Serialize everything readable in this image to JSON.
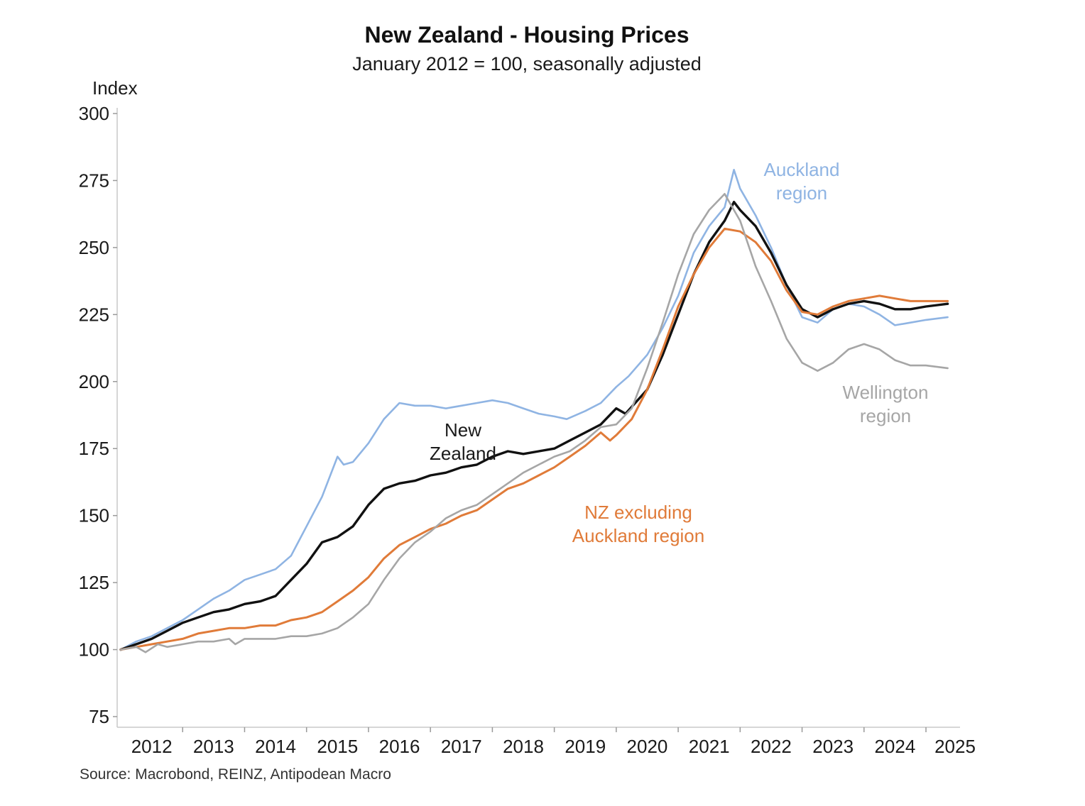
{
  "chart_data": {
    "type": "line",
    "title": "New Zealand - Housing Prices",
    "subtitle": "January 2012 = 100, seasonally adjusted",
    "ylabel": "Index",
    "xlabel": "",
    "source": "Source: Macrobond, REINZ, Antipodean Macro",
    "ylim": [
      75,
      300
    ],
    "xlim": [
      2012.0,
      2025.55
    ],
    "yticks": [
      75,
      100,
      125,
      150,
      175,
      200,
      225,
      250,
      275,
      300
    ],
    "xtick_labels": [
      "2012",
      "2013",
      "2014",
      "2015",
      "2016",
      "2017",
      "2018",
      "2019",
      "2020",
      "2021",
      "2022",
      "2023",
      "2024",
      "2025"
    ],
    "grid": false,
    "legend": "none",
    "series": [
      {
        "name": "Auckland region",
        "color": "#8fb4e3",
        "points": [
          [
            2012.0,
            100
          ],
          [
            2012.25,
            103
          ],
          [
            2012.5,
            105
          ],
          [
            2012.75,
            108
          ],
          [
            2013.0,
            111
          ],
          [
            2013.25,
            115
          ],
          [
            2013.5,
            119
          ],
          [
            2013.75,
            122
          ],
          [
            2014.0,
            126
          ],
          [
            2014.25,
            128
          ],
          [
            2014.5,
            130
          ],
          [
            2014.75,
            135
          ],
          [
            2015.0,
            146
          ],
          [
            2015.25,
            157
          ],
          [
            2015.5,
            172
          ],
          [
            2015.6,
            169
          ],
          [
            2015.75,
            170
          ],
          [
            2016.0,
            177
          ],
          [
            2016.25,
            186
          ],
          [
            2016.5,
            192
          ],
          [
            2016.75,
            191
          ],
          [
            2017.0,
            191
          ],
          [
            2017.25,
            190
          ],
          [
            2017.5,
            191
          ],
          [
            2017.75,
            192
          ],
          [
            2018.0,
            193
          ],
          [
            2018.25,
            192
          ],
          [
            2018.5,
            190
          ],
          [
            2018.75,
            188
          ],
          [
            2019.0,
            187
          ],
          [
            2019.2,
            186
          ],
          [
            2019.5,
            189
          ],
          [
            2019.75,
            192
          ],
          [
            2020.0,
            198
          ],
          [
            2020.2,
            202
          ],
          [
            2020.5,
            210
          ],
          [
            2020.75,
            220
          ],
          [
            2021.0,
            232
          ],
          [
            2021.25,
            248
          ],
          [
            2021.5,
            258
          ],
          [
            2021.75,
            265
          ],
          [
            2021.9,
            279
          ],
          [
            2022.0,
            272
          ],
          [
            2022.25,
            262
          ],
          [
            2022.5,
            250
          ],
          [
            2022.75,
            236
          ],
          [
            2023.0,
            224
          ],
          [
            2023.25,
            222
          ],
          [
            2023.5,
            227
          ],
          [
            2023.75,
            229
          ],
          [
            2024.0,
            228
          ],
          [
            2024.25,
            225
          ],
          [
            2024.5,
            221
          ],
          [
            2024.75,
            222
          ],
          [
            2025.0,
            223
          ],
          [
            2025.35,
            224
          ]
        ]
      },
      {
        "name": "New Zealand",
        "color": "#111111",
        "points": [
          [
            2012.0,
            100
          ],
          [
            2012.25,
            102
          ],
          [
            2012.5,
            104
          ],
          [
            2012.75,
            107
          ],
          [
            2013.0,
            110
          ],
          [
            2013.25,
            112
          ],
          [
            2013.5,
            114
          ],
          [
            2013.75,
            115
          ],
          [
            2014.0,
            117
          ],
          [
            2014.25,
            118
          ],
          [
            2014.5,
            120
          ],
          [
            2014.75,
            126
          ],
          [
            2015.0,
            132
          ],
          [
            2015.25,
            140
          ],
          [
            2015.5,
            142
          ],
          [
            2015.75,
            146
          ],
          [
            2016.0,
            154
          ],
          [
            2016.25,
            160
          ],
          [
            2016.5,
            162
          ],
          [
            2016.75,
            163
          ],
          [
            2017.0,
            165
          ],
          [
            2017.25,
            166
          ],
          [
            2017.5,
            168
          ],
          [
            2017.75,
            169
          ],
          [
            2018.0,
            172
          ],
          [
            2018.25,
            174
          ],
          [
            2018.5,
            173
          ],
          [
            2018.75,
            174
          ],
          [
            2019.0,
            175
          ],
          [
            2019.25,
            178
          ],
          [
            2019.5,
            181
          ],
          [
            2019.75,
            184
          ],
          [
            2020.0,
            190
          ],
          [
            2020.15,
            188
          ],
          [
            2020.5,
            197
          ],
          [
            2020.75,
            210
          ],
          [
            2021.0,
            225
          ],
          [
            2021.25,
            240
          ],
          [
            2021.5,
            252
          ],
          [
            2021.75,
            260
          ],
          [
            2021.9,
            267
          ],
          [
            2022.0,
            264
          ],
          [
            2022.25,
            258
          ],
          [
            2022.5,
            248
          ],
          [
            2022.75,
            236
          ],
          [
            2023.0,
            227
          ],
          [
            2023.25,
            224
          ],
          [
            2023.5,
            227
          ],
          [
            2023.75,
            229
          ],
          [
            2024.0,
            230
          ],
          [
            2024.25,
            229
          ],
          [
            2024.5,
            227
          ],
          [
            2024.75,
            227
          ],
          [
            2025.0,
            228
          ],
          [
            2025.35,
            229
          ]
        ]
      },
      {
        "name": "NZ excluding Auckland region",
        "color": "#e07b39",
        "points": [
          [
            2012.0,
            100
          ],
          [
            2012.25,
            101
          ],
          [
            2012.5,
            102
          ],
          [
            2012.75,
            103
          ],
          [
            2013.0,
            104
          ],
          [
            2013.25,
            106
          ],
          [
            2013.5,
            107
          ],
          [
            2013.75,
            108
          ],
          [
            2014.0,
            108
          ],
          [
            2014.25,
            109
          ],
          [
            2014.5,
            109
          ],
          [
            2014.75,
            111
          ],
          [
            2015.0,
            112
          ],
          [
            2015.25,
            114
          ],
          [
            2015.5,
            118
          ],
          [
            2015.75,
            122
          ],
          [
            2016.0,
            127
          ],
          [
            2016.25,
            134
          ],
          [
            2016.5,
            139
          ],
          [
            2016.75,
            142
          ],
          [
            2017.0,
            145
          ],
          [
            2017.25,
            147
          ],
          [
            2017.5,
            150
          ],
          [
            2017.75,
            152
          ],
          [
            2018.0,
            156
          ],
          [
            2018.25,
            160
          ],
          [
            2018.5,
            162
          ],
          [
            2018.75,
            165
          ],
          [
            2019.0,
            168
          ],
          [
            2019.25,
            172
          ],
          [
            2019.5,
            176
          ],
          [
            2019.75,
            181
          ],
          [
            2019.9,
            178
          ],
          [
            2020.0,
            180
          ],
          [
            2020.25,
            186
          ],
          [
            2020.5,
            197
          ],
          [
            2020.75,
            212
          ],
          [
            2021.0,
            228
          ],
          [
            2021.25,
            240
          ],
          [
            2021.5,
            250
          ],
          [
            2021.75,
            257
          ],
          [
            2022.0,
            256
          ],
          [
            2022.25,
            252
          ],
          [
            2022.5,
            245
          ],
          [
            2022.75,
            234
          ],
          [
            2023.0,
            226
          ],
          [
            2023.25,
            225
          ],
          [
            2023.5,
            228
          ],
          [
            2023.75,
            230
          ],
          [
            2024.0,
            231
          ],
          [
            2024.25,
            232
          ],
          [
            2024.5,
            231
          ],
          [
            2024.75,
            230
          ],
          [
            2025.0,
            230
          ],
          [
            2025.35,
            230
          ]
        ]
      },
      {
        "name": "Wellington region",
        "color": "#a6a6a6",
        "points": [
          [
            2012.0,
            100
          ],
          [
            2012.25,
            101
          ],
          [
            2012.4,
            99
          ],
          [
            2012.6,
            102
          ],
          [
            2012.75,
            101
          ],
          [
            2013.0,
            102
          ],
          [
            2013.25,
            103
          ],
          [
            2013.5,
            103
          ],
          [
            2013.75,
            104
          ],
          [
            2013.85,
            102
          ],
          [
            2014.0,
            104
          ],
          [
            2014.25,
            104
          ],
          [
            2014.5,
            104
          ],
          [
            2014.75,
            105
          ],
          [
            2015.0,
            105
          ],
          [
            2015.25,
            106
          ],
          [
            2015.5,
            108
          ],
          [
            2015.75,
            112
          ],
          [
            2016.0,
            117
          ],
          [
            2016.25,
            126
          ],
          [
            2016.5,
            134
          ],
          [
            2016.75,
            140
          ],
          [
            2017.0,
            144
          ],
          [
            2017.25,
            149
          ],
          [
            2017.5,
            152
          ],
          [
            2017.75,
            154
          ],
          [
            2018.0,
            158
          ],
          [
            2018.25,
            162
          ],
          [
            2018.5,
            166
          ],
          [
            2018.75,
            169
          ],
          [
            2019.0,
            172
          ],
          [
            2019.25,
            174
          ],
          [
            2019.5,
            178
          ],
          [
            2019.75,
            183
          ],
          [
            2020.0,
            184
          ],
          [
            2020.25,
            190
          ],
          [
            2020.5,
            205
          ],
          [
            2020.75,
            222
          ],
          [
            2021.0,
            240
          ],
          [
            2021.25,
            255
          ],
          [
            2021.5,
            264
          ],
          [
            2021.75,
            270
          ],
          [
            2022.0,
            260
          ],
          [
            2022.25,
            243
          ],
          [
            2022.5,
            230
          ],
          [
            2022.75,
            216
          ],
          [
            2023.0,
            207
          ],
          [
            2023.25,
            204
          ],
          [
            2023.5,
            207
          ],
          [
            2023.75,
            212
          ],
          [
            2024.0,
            214
          ],
          [
            2024.25,
            212
          ],
          [
            2024.5,
            208
          ],
          [
            2024.75,
            206
          ],
          [
            2025.0,
            206
          ],
          [
            2025.35,
            205
          ]
        ]
      }
    ],
    "annotations": [
      {
        "text": [
          "Auckland region",
          ""
        ],
        "lines": [
          "Auckland",
          "region"
        ],
        "color": "#8fb4e3",
        "series": "Auckland region"
      },
      {
        "lines": [
          "New",
          "Zealand"
        ],
        "color": "#1a1a1a",
        "series": "New Zealand"
      },
      {
        "lines": [
          "NZ excluding",
          "Auckland region"
        ],
        "color": "#e07b39",
        "series": "NZ excluding Auckland region"
      },
      {
        "lines": [
          "Wellington",
          "region"
        ],
        "color": "#a6a6a6",
        "series": "Wellington region"
      }
    ]
  }
}
